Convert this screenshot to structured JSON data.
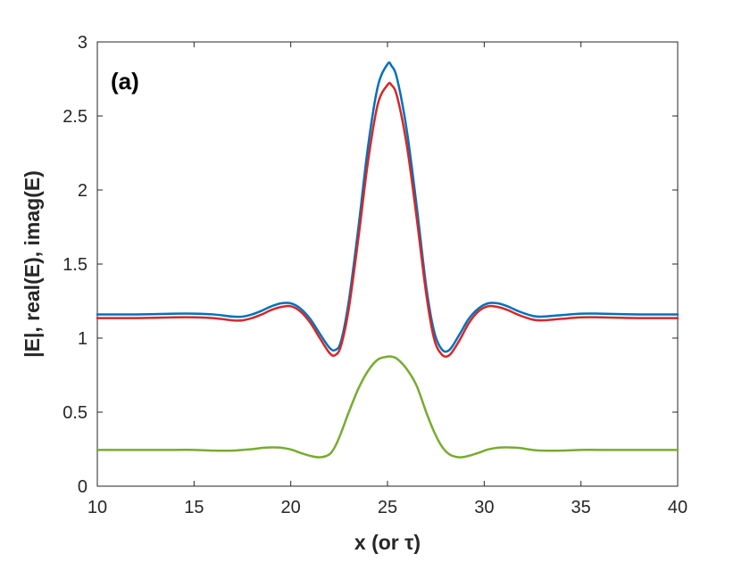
{
  "chart_data": {
    "type": "line",
    "panel_label": "(a)",
    "xlabel": "x (or τ)",
    "ylabel": "|E|, real(E), imag(E)",
    "xlim": [
      10,
      40
    ],
    "ylim": [
      0,
      3
    ],
    "xticks": [
      "10",
      "15",
      "20",
      "25",
      "30",
      "35",
      "40"
    ],
    "yticks": [
      "0",
      "0.5",
      "1",
      "1.5",
      "2",
      "2.5",
      "3"
    ],
    "grid": false,
    "legend": "none",
    "x": [
      10,
      12,
      14,
      15,
      16,
      17,
      17.5,
      18,
      18.5,
      19,
      19.5,
      20,
      20.5,
      21,
      21.5,
      22,
      22.3,
      22.6,
      23,
      23.5,
      24,
      24.5,
      25,
      25.2,
      25.5,
      26,
      26.5,
      27,
      27.4,
      27.8,
      28.2,
      28.7,
      29.2,
      29.7,
      30.2,
      30.7,
      31.2,
      31.8,
      32.5,
      33,
      34,
      35,
      36,
      38,
      40
    ],
    "series": [
      {
        "color": "#0072BD",
        "values": [
          1.16,
          1.16,
          1.165,
          1.165,
          1.16,
          1.145,
          1.145,
          1.16,
          1.185,
          1.215,
          1.235,
          1.235,
          1.2,
          1.13,
          1.03,
          0.935,
          0.92,
          0.98,
          1.25,
          1.75,
          2.3,
          2.7,
          2.85,
          2.84,
          2.75,
          2.4,
          1.9,
          1.35,
          1.05,
          0.925,
          0.92,
          1.02,
          1.13,
          1.2,
          1.235,
          1.235,
          1.215,
          1.18,
          1.15,
          1.145,
          1.155,
          1.165,
          1.165,
          1.16,
          1.16
        ]
      },
      {
        "color": "#D62728",
        "values": [
          1.135,
          1.135,
          1.14,
          1.14,
          1.135,
          1.12,
          1.12,
          1.135,
          1.16,
          1.19,
          1.21,
          1.215,
          1.18,
          1.105,
          1.0,
          0.9,
          0.885,
          0.95,
          1.2,
          1.68,
          2.2,
          2.58,
          2.71,
          2.71,
          2.63,
          2.3,
          1.82,
          1.3,
          1.0,
          0.89,
          0.885,
          0.98,
          1.1,
          1.18,
          1.215,
          1.21,
          1.19,
          1.155,
          1.125,
          1.12,
          1.13,
          1.14,
          1.14,
          1.135,
          1.135
        ]
      },
      {
        "color": "#77AC30",
        "values": [
          0.245,
          0.245,
          0.245,
          0.245,
          0.24,
          0.24,
          0.245,
          0.25,
          0.258,
          0.262,
          0.26,
          0.248,
          0.225,
          0.205,
          0.195,
          0.215,
          0.27,
          0.36,
          0.5,
          0.66,
          0.78,
          0.855,
          0.875,
          0.875,
          0.86,
          0.79,
          0.68,
          0.5,
          0.37,
          0.27,
          0.215,
          0.195,
          0.205,
          0.225,
          0.248,
          0.26,
          0.262,
          0.258,
          0.245,
          0.24,
          0.24,
          0.245,
          0.245,
          0.245,
          0.245
        ]
      }
    ]
  }
}
